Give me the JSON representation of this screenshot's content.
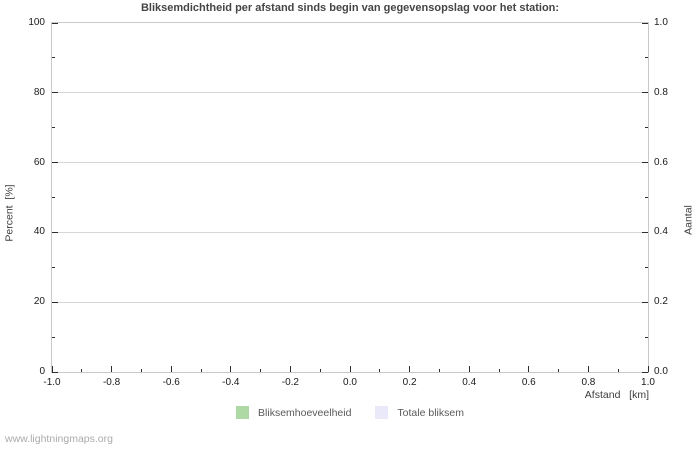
{
  "title": "Bliksemdichtheid per afstand sinds begin van gegevensopslag voor het station:",
  "watermark": "www.lightningmaps.org",
  "colors": {
    "title_text": "#454545",
    "tick_label_text": "#1a1a1a",
    "axis_label_text": "#3d3d3d",
    "grid": "#d6d6d6",
    "plot_border": "#c9c9c9",
    "tick_mark": "#2e2e2e",
    "legend_text": "#5a5a5a",
    "watermark_text": "#ababab",
    "series_green": "#aed8a4",
    "series_lavender": "#e9e9f9"
  },
  "chart_data": {
    "type": "bar",
    "title": "Bliksemdichtheid per afstand sinds begin van gegevensopslag voor het station:",
    "grid": "horizontal-only",
    "legend_position": "bottom-center",
    "x_axis": {
      "label": "Afstand   [km]",
      "min": -1.0,
      "max": 1.0,
      "major_step": 0.2,
      "minor_step": 0.1,
      "decimals": 1,
      "tick_labels": [
        "-1.0",
        "-0.8",
        "-0.6",
        "-0.4",
        "-0.2",
        "0.0",
        "0.2",
        "0.4",
        "0.6",
        "0.8",
        "1.0"
      ]
    },
    "y_left_axis": {
      "label": "Percent  [%]",
      "min": 0,
      "max": 100,
      "major_step": 20,
      "minor_step": 10,
      "decimals": 0,
      "tick_labels": [
        "0",
        "20",
        "40",
        "60",
        "80",
        "100"
      ]
    },
    "y_right_axis": {
      "label": "Aantal",
      "min": 0.0,
      "max": 1.0,
      "major_step": 0.2,
      "minor_step": 0.1,
      "decimals": 1,
      "tick_labels": [
        "0.0",
        "0.2",
        "0.4",
        "0.6",
        "0.8",
        "1.0"
      ]
    },
    "series": [
      {
        "name": "Bliksemhoeveelheid",
        "color": "#aed8a4",
        "values": []
      },
      {
        "name": "Totale bliksem",
        "color": "#e9e9f9",
        "values": []
      }
    ]
  }
}
